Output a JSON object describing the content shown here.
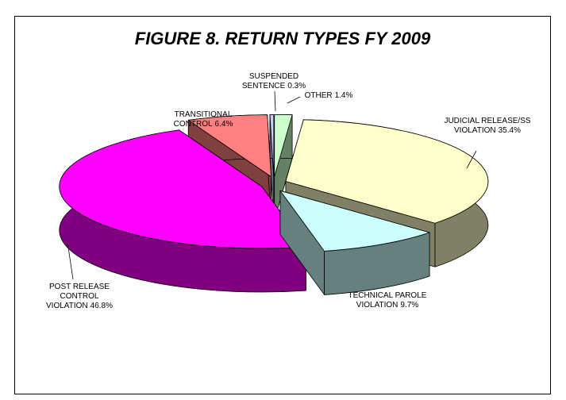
{
  "chart_data": {
    "type": "pie",
    "title": "FIGURE 8.  RETURN TYPES FY 2009",
    "categories": [
      "OTHER",
      "JUDICIAL RELEASE/SS VIOLATION",
      "TECHNICAL PAROLE VIOLATION",
      "POST RELEASE CONTROL VIOLATION",
      "TRANSITIONAL CONTROL",
      "SUSPENDED SENTENCE"
    ],
    "values": [
      1.4,
      35.4,
      9.7,
      46.8,
      6.4,
      0.3
    ],
    "value_labels": [
      "1.4%",
      "35.4%",
      "9.7%",
      "46.8%",
      "6.4%",
      "0.3%"
    ],
    "colors": [
      "#ccffcc",
      "#ffffcc",
      "#ccffff",
      "#ff00ff",
      "#ff8080",
      "#ccccff"
    ]
  }
}
